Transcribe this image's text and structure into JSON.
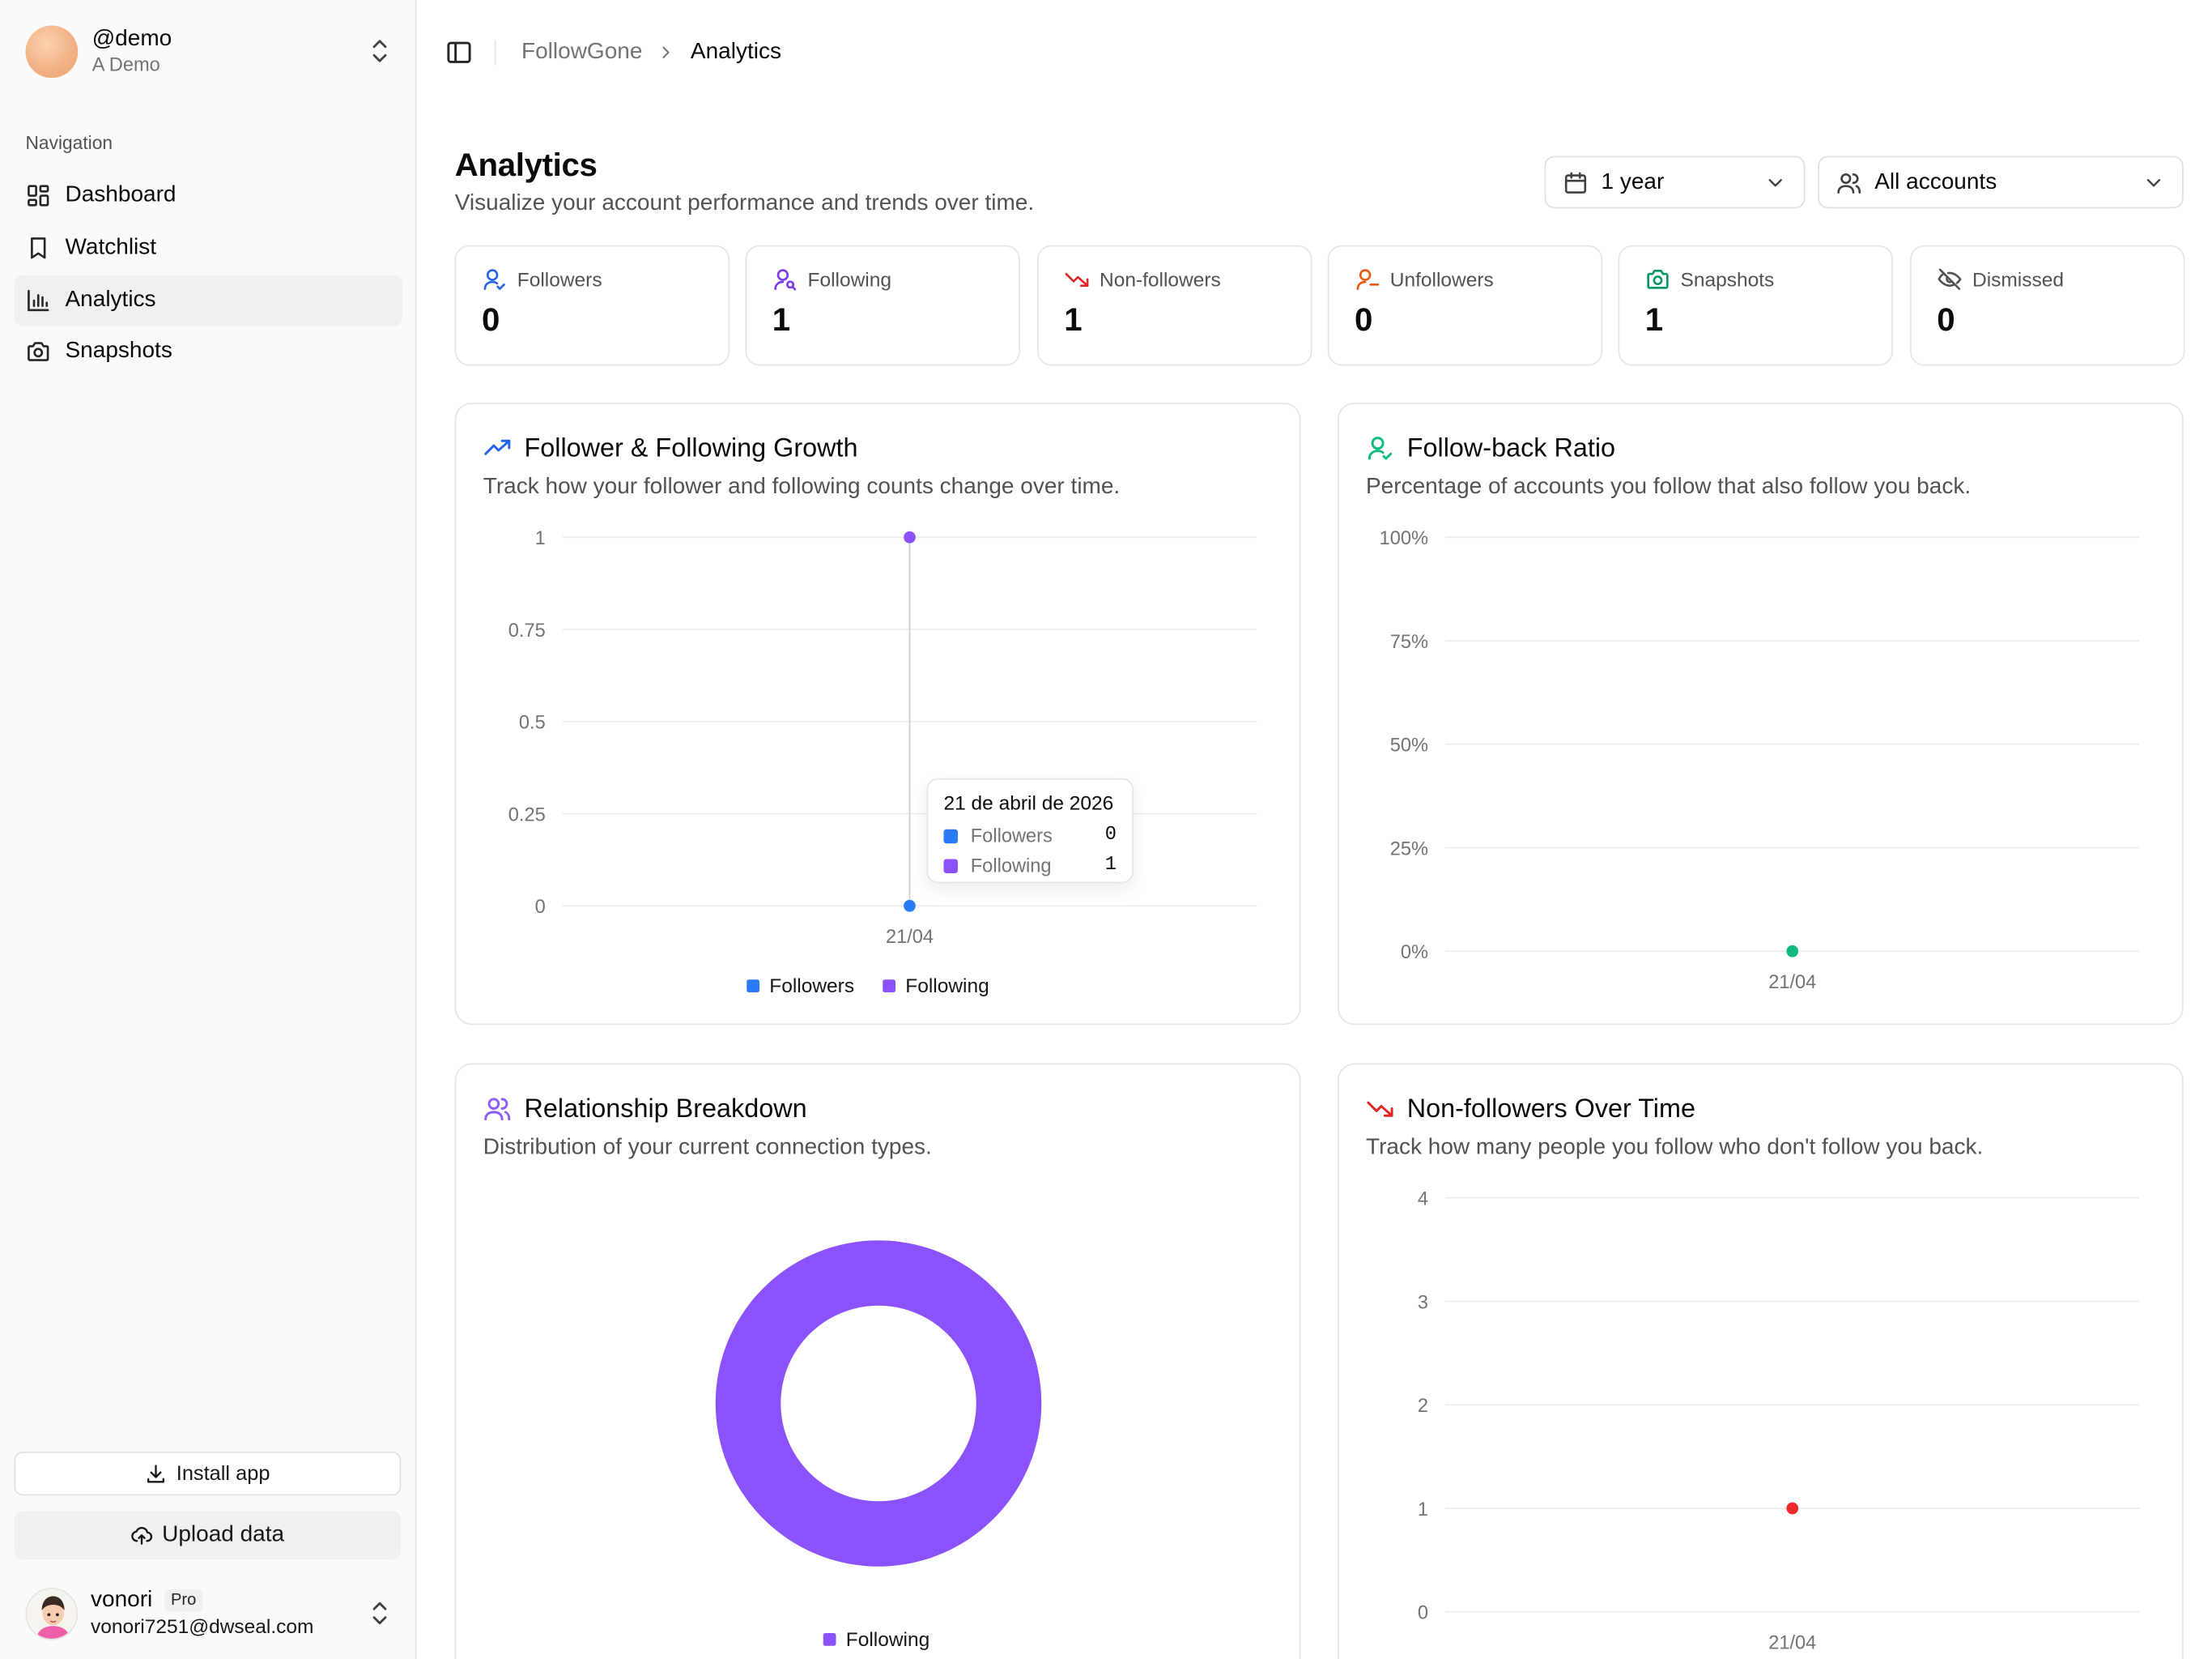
{
  "sidebar": {
    "account": {
      "handle": "@demo",
      "name": "A Demo"
    },
    "nav_label": "Navigation",
    "items": [
      {
        "label": "Dashboard",
        "icon": "dashboard-icon"
      },
      {
        "label": "Watchlist",
        "icon": "bookmark-icon"
      },
      {
        "label": "Analytics",
        "icon": "bar-chart-icon",
        "active": true
      },
      {
        "label": "Snapshots",
        "icon": "camera-icon"
      }
    ],
    "install_label": "Install app",
    "upload_label": "Upload data",
    "user": {
      "name": "vonori",
      "badge": "Pro",
      "email": "vonori7251@dwseal.com"
    }
  },
  "breadcrumb": {
    "parent": "FollowGone",
    "current": "Analytics"
  },
  "page": {
    "title": "Analytics",
    "subtitle": "Visualize your account performance and trends over time."
  },
  "filters": {
    "range": "1 year",
    "accounts": "All accounts"
  },
  "stats": [
    {
      "label": "Followers",
      "value": "0",
      "icon": "user-icon",
      "color": "#2563eb"
    },
    {
      "label": "Following",
      "value": "1",
      "icon": "user-search-icon",
      "color": "#7c3aed"
    },
    {
      "label": "Non-followers",
      "value": "1",
      "icon": "trending-down-icon",
      "color": "#dc2626"
    },
    {
      "label": "Unfollowers",
      "value": "0",
      "icon": "user-minus-icon",
      "color": "#ea580c"
    },
    {
      "label": "Snapshots",
      "value": "1",
      "icon": "camera-icon",
      "color": "#059669"
    },
    {
      "label": "Dismissed",
      "value": "0",
      "icon": "eye-off-icon",
      "color": "#525252"
    }
  ],
  "cards": {
    "growth": {
      "title": "Follower & Following Growth",
      "subtitle": "Track how your follower and following counts change over time.",
      "tooltip": {
        "date": "21 de abril de 2026",
        "followers_label": "Followers",
        "followers_value": "0",
        "following_label": "Following",
        "following_value": "1"
      }
    },
    "ratio": {
      "title": "Follow-back Ratio",
      "subtitle": "Percentage of accounts you follow that also follow you back."
    },
    "breakdown": {
      "title": "Relationship Breakdown",
      "subtitle": "Distribution of your current connection types."
    },
    "nonfollowers": {
      "title": "Non-followers Over Time",
      "subtitle": "Track how many people you follow who don't follow you back."
    }
  },
  "colors": {
    "followers": "#2a7bf5",
    "following": "#8b52fc",
    "ratio": "#10b981",
    "nonfollowers": "#ef2b2b"
  },
  "chart_data": [
    {
      "type": "line",
      "x": [
        "21/04"
      ],
      "series": [
        {
          "name": "Followers",
          "values": [
            0
          ]
        },
        {
          "name": "Following",
          "values": [
            1
          ]
        }
      ],
      "yticks": [
        "0",
        "0.25",
        "0.5",
        "0.75",
        "1"
      ],
      "ylim": [
        0,
        1
      ],
      "grid": true,
      "legend": "bottom"
    },
    {
      "type": "line",
      "x": [
        "21/04"
      ],
      "series": [
        {
          "values": [
            0
          ]
        }
      ],
      "yticks": [
        "0%",
        "25%",
        "50%",
        "75%",
        "100%"
      ],
      "ylim": [
        0,
        100
      ],
      "grid": true
    },
    {
      "type": "pie",
      "donut": true,
      "categories": [
        "Following"
      ],
      "values": [
        1
      ],
      "legend": "bottom"
    },
    {
      "type": "line",
      "x": [
        "21/04"
      ],
      "series": [
        {
          "values": [
            1
          ]
        }
      ],
      "yticks": [
        "0",
        "1",
        "2",
        "3",
        "4"
      ],
      "ylim": [
        0,
        4
      ],
      "grid": true
    }
  ]
}
